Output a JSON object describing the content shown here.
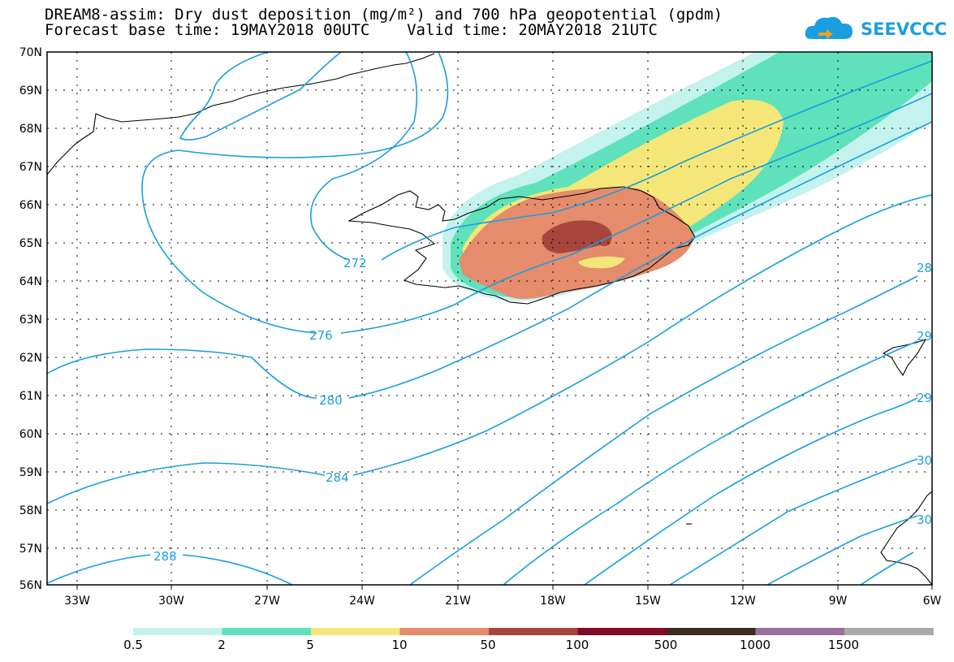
{
  "header": {
    "title_line1": "DREAM8-assim: Dry dust deposition (mg/m²) and 700 hPa geopotential (gpdm)",
    "title_line2": "Forecast base time: 19MAY2018 00UTC    Valid time: 20MAY2018 21UTC",
    "logo_text": "SEEVCCC",
    "logo_icon": "cloud-icon",
    "logo_color": "#1a9ee0"
  },
  "axes": {
    "lat_labels": [
      "70N",
      "69N",
      "68N",
      "67N",
      "66N",
      "65N",
      "64N",
      "63N",
      "62N",
      "61N",
      "60N",
      "59N",
      "58N",
      "57N",
      "56N"
    ],
    "lon_labels": [
      "33W",
      "30W",
      "27W",
      "24W",
      "21W",
      "18W",
      "15W",
      "12W",
      "9W",
      "6W"
    ],
    "lat_range": [
      56,
      70
    ],
    "lon_range": [
      -34.3,
      -6
    ],
    "grid": "dotted"
  },
  "contours": {
    "color": "#1a9ee0",
    "labels": [
      "272",
      "276",
      "280",
      "284",
      "288",
      "28",
      "29",
      "29",
      "30",
      "30"
    ]
  },
  "colorbar": {
    "colors": [
      "#c4f2ec",
      "#5fe2bb",
      "#f5e67a",
      "#e48c6c",
      "#a8463e",
      "#820a26",
      "#3e2a1e",
      "#9a6e9e",
      "#aaaaaa"
    ],
    "labels": [
      "0.5",
      "2",
      "5",
      "10",
      "50",
      "100",
      "500",
      "1000",
      "1500"
    ]
  }
}
